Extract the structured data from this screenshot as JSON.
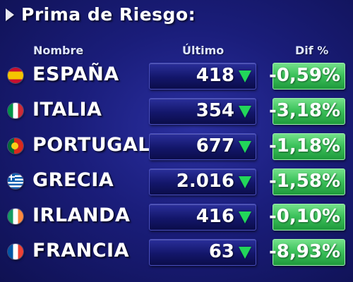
{
  "title": "Prima de Riesgo:",
  "headers": {
    "name": "Nombre",
    "last": "Último",
    "dif": "Dif %"
  },
  "colors": {
    "arrow": "#22d65a",
    "dif_bg": "#3dc35c",
    "background": "#1a1d7a"
  },
  "rows": [
    {
      "country": "ESPAÑA",
      "value": "418",
      "dif": "-0,59%",
      "flag_icon": "spain-flag-icon"
    },
    {
      "country": "ITALIA",
      "value": "354",
      "dif": "-3,18%",
      "flag_icon": "italy-flag-icon"
    },
    {
      "country": "PORTUGAL",
      "value": "677",
      "dif": "-1,18%",
      "flag_icon": "portugal-flag-icon"
    },
    {
      "country": "GRECIA",
      "value": "2.016",
      "dif": "-1,58%",
      "flag_icon": "greece-flag-icon"
    },
    {
      "country": "IRLANDA",
      "value": "416",
      "dif": "-0,10%",
      "flag_icon": "ireland-flag-icon"
    },
    {
      "country": "FRANCIA",
      "value": "63",
      "dif": "-8,93%",
      "flag_icon": "france-flag-icon"
    }
  ]
}
